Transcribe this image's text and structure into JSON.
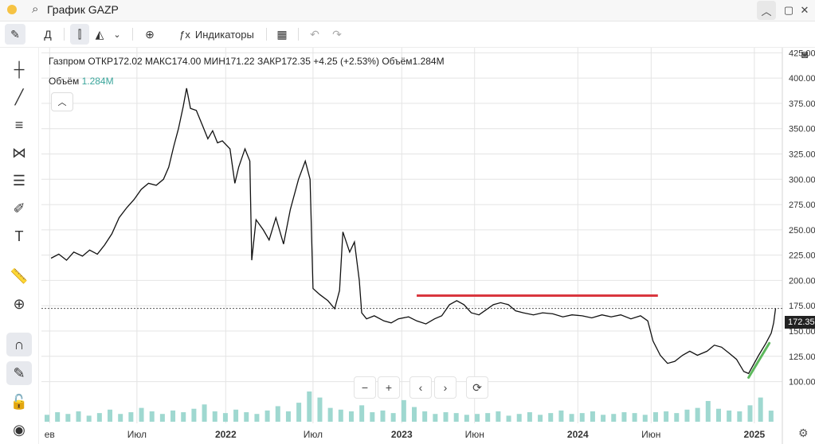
{
  "window": {
    "title": "График GAZP"
  },
  "toolbar": {
    "interval": "Д",
    "indicators_label": "Индикаторы"
  },
  "legend": {
    "ticker": "Газпром",
    "open_label": "ОТКР",
    "open": "172.02",
    "high_label": "МАКС",
    "high": "174.00",
    "low_label": "МИН",
    "low": "171.22",
    "close_label": "ЗАКР",
    "close": "172.35",
    "change": "+4.25 (+2.53%)",
    "volume_label": "Объём",
    "volume": "1.284M"
  },
  "volume_legend": {
    "label": "Объём",
    "value": "1.284M"
  },
  "last_price_tag": "172.35",
  "colors": {
    "price_line": "#111111",
    "resistance": "#d9363e",
    "trend": "#5cb85c",
    "volume": "#9fd8d0",
    "tag_bg": "#222222"
  },
  "chart_data": {
    "type": "line",
    "series": [
      {
        "values": [
          [
            "2021-01-04",
            222
          ],
          [
            "2021-01-20",
            226
          ],
          [
            "2021-02-05",
            220
          ],
          [
            "2021-02-20",
            228
          ],
          [
            "2021-03-10",
            224
          ],
          [
            "2021-03-25",
            230
          ],
          [
            "2021-04-10",
            226
          ],
          [
            "2021-04-25",
            235
          ],
          [
            "2021-05-10",
            246
          ],
          [
            "2021-05-25",
            262
          ],
          [
            "2021-06-10",
            272
          ],
          [
            "2021-06-25",
            280
          ],
          [
            "2021-07-10",
            290
          ],
          [
            "2021-07-25",
            296
          ],
          [
            "2021-08-10",
            294
          ],
          [
            "2021-08-25",
            300
          ],
          [
            "2021-09-05",
            312
          ],
          [
            "2021-09-15",
            332
          ],
          [
            "2021-09-25",
            350
          ],
          [
            "2021-10-05",
            372
          ],
          [
            "2021-10-12",
            390
          ],
          [
            "2021-10-20",
            370
          ],
          [
            "2021-11-01",
            368
          ],
          [
            "2021-11-15",
            352
          ],
          [
            "2021-11-25",
            340
          ],
          [
            "2021-12-05",
            348
          ],
          [
            "2021-12-15",
            336
          ],
          [
            "2021-12-25",
            338
          ],
          [
            "2022-01-10",
            330
          ],
          [
            "2022-01-20",
            296
          ],
          [
            "2022-01-28",
            312
          ],
          [
            "2022-02-10",
            330
          ],
          [
            "2022-02-20",
            318
          ],
          [
            "2022-02-24",
            220
          ],
          [
            "2022-03-05",
            260
          ],
          [
            "2022-03-20",
            250
          ],
          [
            "2022-04-01",
            240
          ],
          [
            "2022-04-15",
            262
          ],
          [
            "2022-05-01",
            236
          ],
          [
            "2022-05-15",
            270
          ],
          [
            "2022-06-01",
            300
          ],
          [
            "2022-06-15",
            318
          ],
          [
            "2022-06-25",
            300
          ],
          [
            "2022-07-01",
            192
          ],
          [
            "2022-07-15",
            186
          ],
          [
            "2022-08-01",
            180
          ],
          [
            "2022-08-15",
            172
          ],
          [
            "2022-08-25",
            190
          ],
          [
            "2022-09-01",
            248
          ],
          [
            "2022-09-15",
            228
          ],
          [
            "2022-09-25",
            238
          ],
          [
            "2022-10-05",
            200
          ],
          [
            "2022-10-10",
            168
          ],
          [
            "2022-10-20",
            162
          ],
          [
            "2022-11-05",
            165
          ],
          [
            "2022-11-25",
            160
          ],
          [
            "2022-12-10",
            158
          ],
          [
            "2022-12-25",
            162
          ],
          [
            "2023-01-15",
            164
          ],
          [
            "2023-02-01",
            160
          ],
          [
            "2023-02-20",
            157
          ],
          [
            "2023-03-10",
            162
          ],
          [
            "2023-03-25",
            165
          ],
          [
            "2023-04-10",
            176
          ],
          [
            "2023-04-25",
            180
          ],
          [
            "2023-05-10",
            176
          ],
          [
            "2023-05-25",
            168
          ],
          [
            "2023-06-10",
            166
          ],
          [
            "2023-06-25",
            171
          ],
          [
            "2023-07-10",
            176
          ],
          [
            "2023-07-25",
            178
          ],
          [
            "2023-08-10",
            176
          ],
          [
            "2023-08-25",
            170
          ],
          [
            "2023-09-10",
            168
          ],
          [
            "2023-10-01",
            166
          ],
          [
            "2023-10-20",
            168
          ],
          [
            "2023-11-10",
            167
          ],
          [
            "2023-12-01",
            164
          ],
          [
            "2023-12-20",
            166
          ],
          [
            "2024-01-10",
            165
          ],
          [
            "2024-01-30",
            163
          ],
          [
            "2024-02-20",
            166
          ],
          [
            "2024-03-10",
            164
          ],
          [
            "2024-03-30",
            166
          ],
          [
            "2024-04-20",
            162
          ],
          [
            "2024-05-10",
            165
          ],
          [
            "2024-05-25",
            160
          ],
          [
            "2024-06-05",
            140
          ],
          [
            "2024-06-20",
            126
          ],
          [
            "2024-07-05",
            118
          ],
          [
            "2024-07-20",
            120
          ],
          [
            "2024-08-05",
            126
          ],
          [
            "2024-08-20",
            130
          ],
          [
            "2024-09-05",
            126
          ],
          [
            "2024-09-25",
            130
          ],
          [
            "2024-10-10",
            136
          ],
          [
            "2024-10-25",
            134
          ],
          [
            "2024-11-10",
            128
          ],
          [
            "2024-11-25",
            122
          ],
          [
            "2024-12-10",
            110
          ],
          [
            "2024-12-20",
            108
          ],
          [
            "2025-01-10",
            126
          ],
          [
            "2025-01-25",
            138
          ],
          [
            "2025-02-05",
            148
          ],
          [
            "2025-02-10",
            158
          ],
          [
            "2025-02-14",
            172.35
          ]
        ]
      }
    ],
    "volume_values": [
      0.8,
      1.1,
      0.9,
      1.2,
      0.7,
      1.0,
      1.4,
      0.9,
      1.1,
      1.6,
      1.2,
      0.9,
      1.3,
      1.1,
      1.5,
      2.0,
      1.2,
      1.0,
      1.4,
      1.1,
      0.9,
      1.3,
      1.8,
      1.2,
      2.2,
      3.5,
      2.8,
      1.6,
      1.4,
      1.2,
      1.9,
      1.1,
      1.3,
      1.0,
      2.5,
      1.7,
      1.2,
      0.9,
      1.1,
      1.0,
      0.8,
      0.9,
      1.0,
      1.2,
      0.7,
      0.9,
      1.1,
      0.8,
      1.0,
      1.3,
      0.9,
      1.0,
      1.2,
      0.8,
      0.9,
      1.1,
      1.0,
      0.8,
      1.1,
      1.2,
      1.0,
      1.4,
      1.6,
      2.4,
      1.5,
      1.3,
      1.2,
      1.9,
      2.8,
      1.284
    ],
    "resistance_line": {
      "from": [
        "2023-02-01",
        185
      ],
      "to": [
        "2024-06-15",
        185
      ]
    },
    "trend_line": {
      "from": [
        "2024-12-20",
        104
      ],
      "to": [
        "2025-02-01",
        138
      ]
    },
    "last_price_line": 172.35,
    "y_axis": {
      "ticks": [
        "100.00",
        "125.00",
        "150.00",
        "175.00",
        "200.00",
        "225.00",
        "250.00",
        "275.00",
        "300.00",
        "325.00",
        "350.00",
        "375.00",
        "400.00",
        "425.00"
      ],
      "ylim": [
        80,
        430
      ]
    },
    "x_axis": {
      "ticks": [
        {
          "label": "ев",
          "date": "2021-01-01"
        },
        {
          "label": "Июл",
          "date": "2021-07-01"
        },
        {
          "label": "2022",
          "date": "2022-01-01"
        },
        {
          "label": "Июл",
          "date": "2022-07-01"
        },
        {
          "label": "2023",
          "date": "2023-01-01"
        },
        {
          "label": "Июн",
          "date": "2023-06-01"
        },
        {
          "label": "2024",
          "date": "2024-01-01"
        },
        {
          "label": "Июн",
          "date": "2024-06-01"
        },
        {
          "label": "2025",
          "date": "2025-01-01"
        }
      ],
      "xlim": [
        "2020-12-15",
        "2025-02-28"
      ]
    },
    "grid": true
  }
}
